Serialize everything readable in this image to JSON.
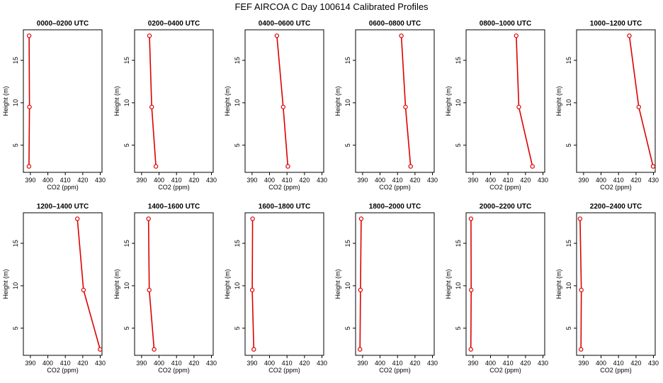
{
  "figure": {
    "title": "FEF AIRCOA C  Day 100614  Calibrated Profiles"
  },
  "style": {
    "line_color": "#dd0000",
    "point_color": "#dd0000",
    "axis_color": "#000000"
  },
  "chart_data": [
    {
      "type": "line",
      "title": "0000–0200 UTC",
      "xlabel": "CO2 (ppm)",
      "ylabel": "Height (m)",
      "xlim": [
        386,
        431
      ],
      "ylim": [
        1.8,
        18.6
      ],
      "xticks": [
        390,
        400,
        410,
        420,
        430
      ],
      "yticks": [
        5,
        10,
        15
      ],
      "series": [
        {
          "x": [
            389.2,
            389.5,
            389.3
          ],
          "y": [
            2.5,
            9.5,
            17.9
          ]
        }
      ]
    },
    {
      "type": "line",
      "title": "0200–0400 UTC",
      "xlabel": "CO2 (ppm)",
      "ylabel": "Height (m)",
      "xlim": [
        386,
        431
      ],
      "ylim": [
        1.8,
        18.6
      ],
      "xticks": [
        390,
        400,
        410,
        420,
        430
      ],
      "yticks": [
        5,
        10,
        15
      ],
      "series": [
        {
          "x": [
            398.2,
            395.8,
            394.5
          ],
          "y": [
            2.5,
            9.5,
            17.9
          ]
        }
      ]
    },
    {
      "type": "line",
      "title": "0400–0600 UTC",
      "xlabel": "CO2 (ppm)",
      "ylabel": "Height (m)",
      "xlim": [
        386,
        431
      ],
      "ylim": [
        1.8,
        18.6
      ],
      "xticks": [
        390,
        400,
        410,
        420,
        430
      ],
      "yticks": [
        5,
        10,
        15
      ],
      "series": [
        {
          "x": [
            410.5,
            407.8,
            404.2
          ],
          "y": [
            2.5,
            9.5,
            17.9
          ]
        }
      ]
    },
    {
      "type": "line",
      "title": "0600–0800 UTC",
      "xlabel": "CO2 (ppm)",
      "ylabel": "Height (m)",
      "xlim": [
        386,
        431
      ],
      "ylim": [
        1.8,
        18.6
      ],
      "xticks": [
        390,
        400,
        410,
        420,
        430
      ],
      "yticks": [
        5,
        10,
        15
      ],
      "series": [
        {
          "x": [
            417.5,
            414.6,
            412.2
          ],
          "y": [
            2.5,
            9.5,
            17.9
          ]
        }
      ]
    },
    {
      "type": "line",
      "title": "0800–1000 UTC",
      "xlabel": "CO2 (ppm)",
      "ylabel": "Height (m)",
      "xlim": [
        386,
        431
      ],
      "ylim": [
        1.8,
        18.6
      ],
      "xticks": [
        390,
        400,
        410,
        420,
        430
      ],
      "yticks": [
        5,
        10,
        15
      ],
      "series": [
        {
          "x": [
            424.0,
            416.2,
            414.7
          ],
          "y": [
            2.5,
            9.5,
            17.9
          ]
        }
      ]
    },
    {
      "type": "line",
      "title": "1000–1200 UTC",
      "xlabel": "CO2 (ppm)",
      "ylabel": "Height (m)",
      "xlim": [
        386,
        431
      ],
      "ylim": [
        1.8,
        18.6
      ],
      "xticks": [
        390,
        400,
        410,
        420,
        430
      ],
      "yticks": [
        5,
        10,
        15
      ],
      "series": [
        {
          "x": [
            429.8,
            421.6,
            416.2
          ],
          "y": [
            2.5,
            9.5,
            17.9
          ]
        }
      ]
    },
    {
      "type": "line",
      "title": "1200–1400 UTC",
      "xlabel": "CO2 (ppm)",
      "ylabel": "Height (m)",
      "xlim": [
        386,
        431
      ],
      "ylim": [
        1.8,
        18.6
      ],
      "xticks": [
        390,
        400,
        410,
        420,
        430
      ],
      "yticks": [
        5,
        10,
        15
      ],
      "series": [
        {
          "x": [
            429.9,
            420.4,
            416.9
          ],
          "y": [
            2.5,
            9.5,
            17.9
          ]
        }
      ]
    },
    {
      "type": "line",
      "title": "1400–1600 UTC",
      "xlabel": "CO2 (ppm)",
      "ylabel": "Height (m)",
      "xlim": [
        386,
        431
      ],
      "ylim": [
        1.8,
        18.6
      ],
      "xticks": [
        390,
        400,
        410,
        420,
        430
      ],
      "yticks": [
        5,
        10,
        15
      ],
      "series": [
        {
          "x": [
            397.2,
            394.4,
            394.0
          ],
          "y": [
            2.5,
            9.5,
            17.9
          ]
        }
      ]
    },
    {
      "type": "line",
      "title": "1600–1800 UTC",
      "xlabel": "CO2 (ppm)",
      "ylabel": "Height (m)",
      "xlim": [
        386,
        431
      ],
      "ylim": [
        1.8,
        18.6
      ],
      "xticks": [
        390,
        400,
        410,
        420,
        430
      ],
      "yticks": [
        5,
        10,
        15
      ],
      "series": [
        {
          "x": [
            391.0,
            390.1,
            390.3
          ],
          "y": [
            2.5,
            9.5,
            17.9
          ]
        }
      ]
    },
    {
      "type": "line",
      "title": "1800–2000 UTC",
      "xlabel": "CO2 (ppm)",
      "ylabel": "Height (m)",
      "xlim": [
        386,
        431
      ],
      "ylim": [
        1.8,
        18.6
      ],
      "xticks": [
        390,
        400,
        410,
        420,
        430
      ],
      "yticks": [
        5,
        10,
        15
      ],
      "series": [
        {
          "x": [
            388.5,
            388.8,
            389.2
          ],
          "y": [
            2.5,
            9.5,
            17.9
          ]
        }
      ]
    },
    {
      "type": "line",
      "title": "2000–2200 UTC",
      "xlabel": "CO2 (ppm)",
      "ylabel": "Height (m)",
      "xlim": [
        386,
        431
      ],
      "ylim": [
        1.8,
        18.6
      ],
      "xticks": [
        390,
        400,
        410,
        420,
        430
      ],
      "yticks": [
        5,
        10,
        15
      ],
      "series": [
        {
          "x": [
            388.7,
            388.9,
            388.8
          ],
          "y": [
            2.5,
            9.5,
            17.9
          ]
        }
      ]
    },
    {
      "type": "line",
      "title": "2200–2400 UTC",
      "xlabel": "CO2 (ppm)",
      "ylabel": "Height (m)",
      "xlim": [
        386,
        431
      ],
      "ylim": [
        1.8,
        18.6
      ],
      "xticks": [
        390,
        400,
        410,
        420,
        430
      ],
      "yticks": [
        5,
        10,
        15
      ],
      "series": [
        {
          "x": [
            388.5,
            388.7,
            388.0
          ],
          "y": [
            2.5,
            9.5,
            17.9
          ]
        }
      ]
    }
  ]
}
